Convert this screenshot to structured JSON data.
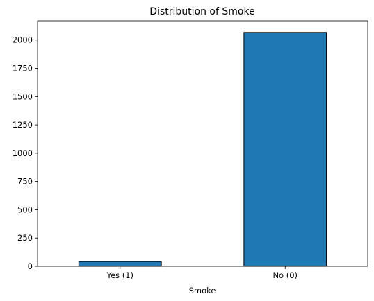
{
  "chart_data": {
    "type": "bar",
    "title": "Distribution of Smoke",
    "xlabel": "Smoke",
    "ylabel": "",
    "categories": [
      "Yes (1)",
      "No (0)"
    ],
    "values": [
      42,
      2067
    ],
    "ylim": [
      0,
      2170
    ],
    "yticks": [
      0,
      250,
      500,
      750,
      1000,
      1250,
      1500,
      1750,
      2000
    ],
    "grid": false,
    "bar_color": "#1f77b4",
    "edge_color": "#000000"
  }
}
